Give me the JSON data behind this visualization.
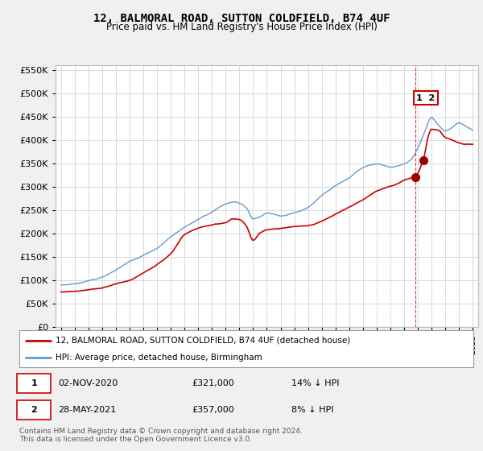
{
  "title": "12, BALMORAL ROAD, SUTTON COLDFIELD, B74 4UF",
  "subtitle": "Price paid vs. HM Land Registry's House Price Index (HPI)",
  "ylim": [
    0,
    560000
  ],
  "yticks": [
    0,
    50000,
    100000,
    150000,
    200000,
    250000,
    300000,
    350000,
    400000,
    450000,
    500000,
    550000
  ],
  "xlim_start": 1994.6,
  "xlim_end": 2025.4,
  "red_line_color": "#cc0000",
  "blue_line_color": "#6699cc",
  "marker_color": "#990000",
  "dashed_line_color": "#cc0000",
  "transaction1": {
    "label": "1",
    "x_year": 2020.84,
    "y": 321000,
    "date": "02-NOV-2020",
    "price": "£321,000",
    "hpi": "14% ↓ HPI"
  },
  "transaction2": {
    "label": "2",
    "x_year": 2021.41,
    "y": 357000,
    "date": "28-MAY-2021",
    "price": "£357,000",
    "hpi": "8% ↓ HPI"
  },
  "legend_line1": "12, BALMORAL ROAD, SUTTON COLDFIELD, B74 4UF (detached house)",
  "legend_line2": "HPI: Average price, detached house, Birmingham",
  "footer": "Contains HM Land Registry data © Crown copyright and database right 2024.\nThis data is licensed under the Open Government Licence v3.0.",
  "background_color": "#f0f0f0",
  "plot_background": "#ffffff",
  "grid_color": "#cccccc"
}
